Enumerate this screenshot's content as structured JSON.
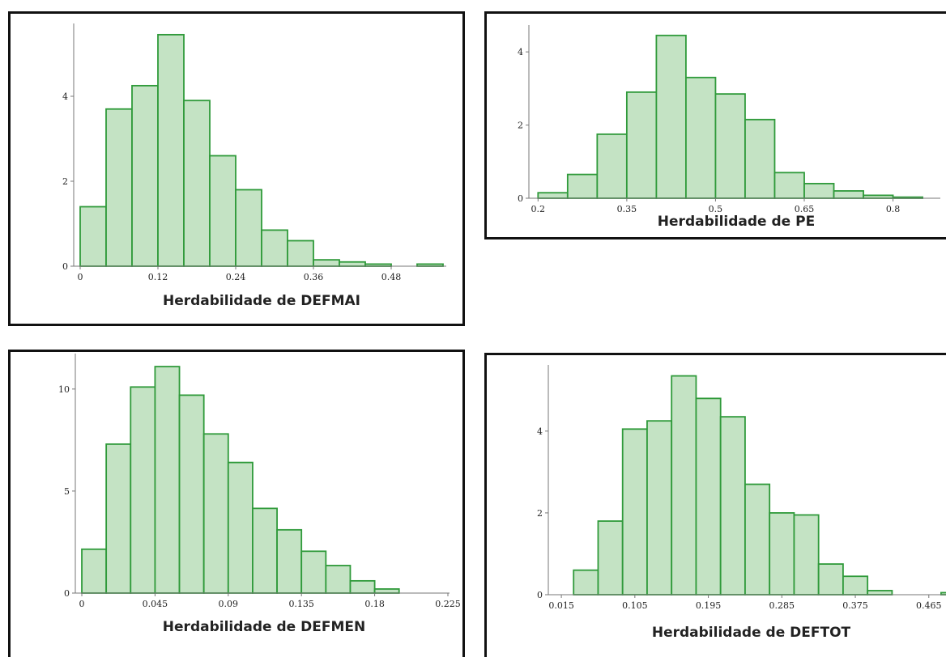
{
  "colors": {
    "bar_fill": "#c4e3c4",
    "bar_stroke": "#2f9a3a",
    "frame": "#111111",
    "text": "#222222"
  },
  "chart_data": [
    {
      "type": "bar",
      "title": "",
      "xlabel": "Herdabilidade de DEFMAI",
      "ylabel": "",
      "bins": [
        {
          "x0": 0.0,
          "x1": 0.04,
          "y": 1.4
        },
        {
          "x0": 0.04,
          "x1": 0.08,
          "y": 3.7
        },
        {
          "x0": 0.08,
          "x1": 0.12,
          "y": 4.25
        },
        {
          "x0": 0.12,
          "x1": 0.16,
          "y": 5.45
        },
        {
          "x0": 0.16,
          "x1": 0.2,
          "y": 3.9
        },
        {
          "x0": 0.2,
          "x1": 0.24,
          "y": 2.6
        },
        {
          "x0": 0.24,
          "x1": 0.28,
          "y": 1.8
        },
        {
          "x0": 0.28,
          "x1": 0.32,
          "y": 0.85
        },
        {
          "x0": 0.32,
          "x1": 0.36,
          "y": 0.6
        },
        {
          "x0": 0.36,
          "x1": 0.4,
          "y": 0.15
        },
        {
          "x0": 0.4,
          "x1": 0.44,
          "y": 0.1
        },
        {
          "x0": 0.44,
          "x1": 0.48,
          "y": 0.05
        },
        {
          "x0": 0.48,
          "x1": 0.52,
          "y": 0.0
        },
        {
          "x0": 0.52,
          "x1": 0.56,
          "y": 0.05
        }
      ],
      "x_ticks": [
        "0",
        "0.12",
        "0.24",
        "0.36",
        "0.48"
      ],
      "y_ticks": [
        "0",
        "2",
        "4"
      ],
      "xlim": [
        -0.005,
        0.565
      ],
      "ylim": [
        0,
        5.6
      ]
    },
    {
      "type": "bar",
      "title": "",
      "xlabel": "Herdabilidade de PE",
      "ylabel": "",
      "bins": [
        {
          "x0": 0.2,
          "x1": 0.25,
          "y": 0.15
        },
        {
          "x0": 0.25,
          "x1": 0.3,
          "y": 0.65
        },
        {
          "x0": 0.3,
          "x1": 0.35,
          "y": 1.75
        },
        {
          "x0": 0.35,
          "x1": 0.4,
          "y": 2.9
        },
        {
          "x0": 0.4,
          "x1": 0.45,
          "y": 4.45
        },
        {
          "x0": 0.45,
          "x1": 0.5,
          "y": 3.3
        },
        {
          "x0": 0.5,
          "x1": 0.55,
          "y": 2.85
        },
        {
          "x0": 0.55,
          "x1": 0.6,
          "y": 2.15
        },
        {
          "x0": 0.6,
          "x1": 0.65,
          "y": 0.7
        },
        {
          "x0": 0.65,
          "x1": 0.7,
          "y": 0.4
        },
        {
          "x0": 0.7,
          "x1": 0.75,
          "y": 0.2
        },
        {
          "x0": 0.75,
          "x1": 0.8,
          "y": 0.08
        },
        {
          "x0": 0.8,
          "x1": 0.85,
          "y": 0.03
        }
      ],
      "x_ticks": [
        "0.2",
        "0.35",
        "0.5",
        "0.65",
        "0.8"
      ],
      "y_ticks": [
        "0",
        "2",
        "4"
      ],
      "xlim": [
        0.19,
        0.88
      ],
      "ylim": [
        0,
        4.6
      ]
    },
    {
      "type": "bar",
      "title": "",
      "xlabel": "Herdabilidade de DEFMEN",
      "ylabel": "",
      "bins": [
        {
          "x0": 0.0,
          "x1": 0.015,
          "y": 2.15
        },
        {
          "x0": 0.015,
          "x1": 0.03,
          "y": 7.3
        },
        {
          "x0": 0.03,
          "x1": 0.045,
          "y": 10.1
        },
        {
          "x0": 0.045,
          "x1": 0.06,
          "y": 11.1
        },
        {
          "x0": 0.06,
          "x1": 0.075,
          "y": 9.7
        },
        {
          "x0": 0.075,
          "x1": 0.09,
          "y": 7.8
        },
        {
          "x0": 0.09,
          "x1": 0.105,
          "y": 6.4
        },
        {
          "x0": 0.105,
          "x1": 0.12,
          "y": 4.15
        },
        {
          "x0": 0.12,
          "x1": 0.135,
          "y": 3.1
        },
        {
          "x0": 0.135,
          "x1": 0.15,
          "y": 2.05
        },
        {
          "x0": 0.15,
          "x1": 0.165,
          "y": 1.35
        },
        {
          "x0": 0.165,
          "x1": 0.18,
          "y": 0.6
        },
        {
          "x0": 0.18,
          "x1": 0.195,
          "y": 0.2
        }
      ],
      "x_ticks": [
        "0",
        "0.045",
        "0.09",
        "0.135",
        "0.18",
        "0.225"
      ],
      "y_ticks": [
        "0",
        "5",
        "10"
      ],
      "xlim": [
        -0.002,
        0.226
      ],
      "ylim": [
        0,
        11.5
      ]
    },
    {
      "type": "bar",
      "title": "",
      "xlabel": "Herdabilidade de DEFTOT",
      "ylabel": "",
      "bins": [
        {
          "x0": 0.03,
          "x1": 0.06,
          "y": 0.6
        },
        {
          "x0": 0.06,
          "x1": 0.09,
          "y": 1.8
        },
        {
          "x0": 0.09,
          "x1": 0.12,
          "y": 4.05
        },
        {
          "x0": 0.12,
          "x1": 0.15,
          "y": 4.25
        },
        {
          "x0": 0.15,
          "x1": 0.18,
          "y": 5.35
        },
        {
          "x0": 0.18,
          "x1": 0.21,
          "y": 4.8
        },
        {
          "x0": 0.21,
          "x1": 0.24,
          "y": 4.35
        },
        {
          "x0": 0.24,
          "x1": 0.27,
          "y": 2.7
        },
        {
          "x0": 0.27,
          "x1": 0.3,
          "y": 2.0
        },
        {
          "x0": 0.3,
          "x1": 0.33,
          "y": 1.95
        },
        {
          "x0": 0.33,
          "x1": 0.36,
          "y": 0.75
        },
        {
          "x0": 0.36,
          "x1": 0.39,
          "y": 0.45
        },
        {
          "x0": 0.39,
          "x1": 0.42,
          "y": 0.1
        },
        {
          "x0": 0.42,
          "x1": 0.45,
          "y": 0.0
        },
        {
          "x0": 0.45,
          "x1": 0.48,
          "y": 0.0
        },
        {
          "x0": 0.48,
          "x1": 0.51,
          "y": 0.05
        }
      ],
      "x_ticks": [
        "0.015",
        "0.105",
        "0.195",
        "0.285",
        "0.375",
        "0.465"
      ],
      "y_ticks": [
        "0",
        "2",
        "4"
      ],
      "xlim": [
        0.003,
        0.492
      ],
      "ylim": [
        0,
        5.5
      ]
    }
  ]
}
